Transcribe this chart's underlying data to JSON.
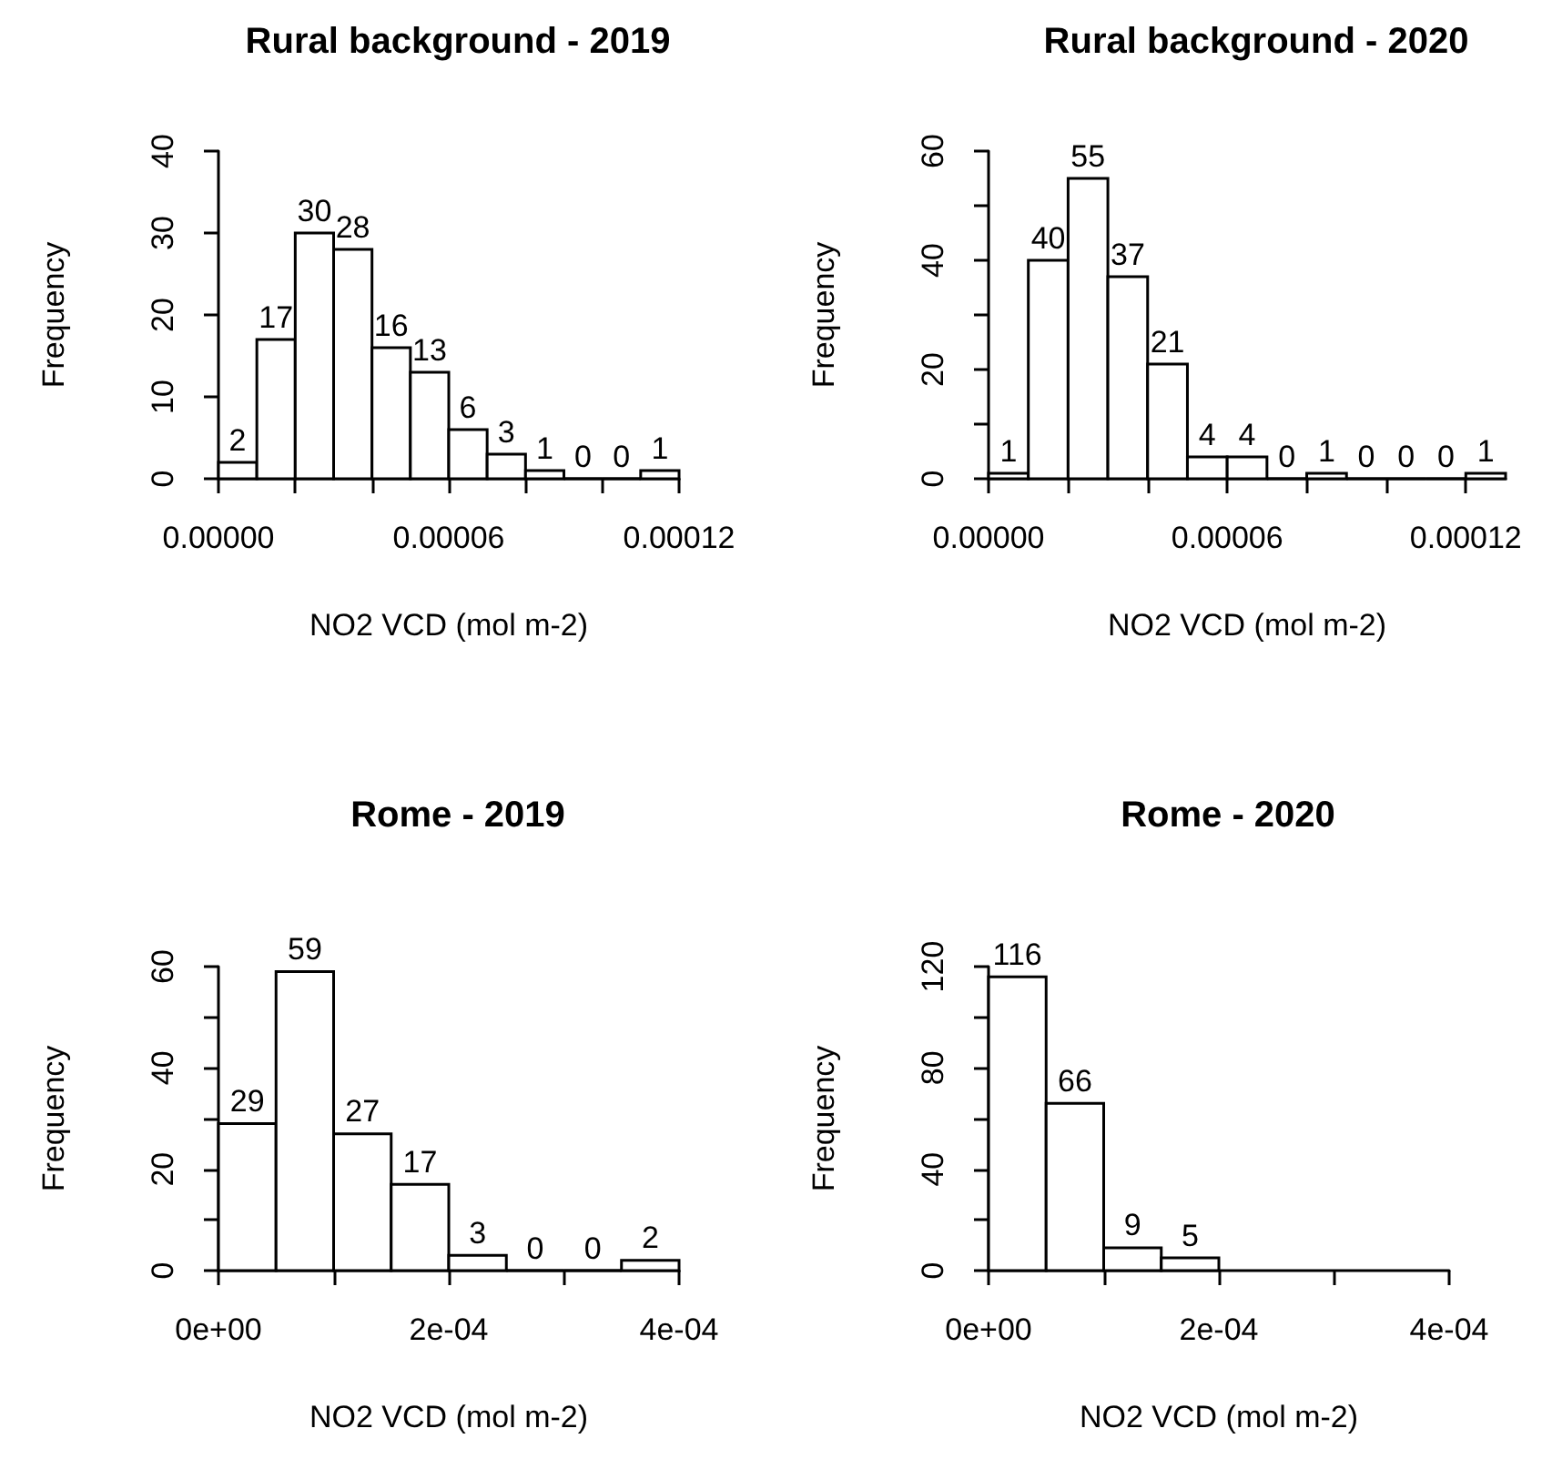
{
  "chart_data": [
    {
      "type": "histogram",
      "title": "Rural background - 2019",
      "xlabel": "NO2 VCD (mol m-2)",
      "ylabel": "Frequency",
      "color": "#ffffff",
      "data_labels": true,
      "grid": false,
      "bins": [
        0,
        1e-05,
        2e-05,
        3e-05,
        4e-05,
        5e-05,
        6e-05,
        7e-05,
        8e-05,
        9e-05,
        0.0001,
        0.00011,
        0.00012
      ],
      "values": [
        2,
        17,
        30,
        28,
        16,
        13,
        6,
        3,
        1,
        0,
        0,
        1
      ],
      "xlim": [
        0,
        0.00012
      ],
      "xticks": [
        {
          "value": 0,
          "label": "0.00000"
        },
        {
          "value": 2e-05,
          "label": null
        },
        {
          "value": 4e-05,
          "label": null
        },
        {
          "value": 6e-05,
          "label": "0.00006"
        },
        {
          "value": 8e-05,
          "label": null
        },
        {
          "value": 0.0001,
          "label": null
        },
        {
          "value": 0.00012,
          "label": "0.00012"
        }
      ],
      "ylim": [
        0,
        40
      ],
      "yticks": [
        0,
        10,
        20,
        30,
        40
      ]
    },
    {
      "type": "histogram",
      "title": "Rural background - 2020",
      "xlabel": "NO2 VCD (mol m-2)",
      "ylabel": "Frequency",
      "color": "#ffffff",
      "data_labels": true,
      "grid": false,
      "bins": [
        0,
        1e-05,
        2e-05,
        3e-05,
        4e-05,
        5e-05,
        6e-05,
        7e-05,
        8e-05,
        9e-05,
        0.0001,
        0.00011,
        0.00012,
        0.00013
      ],
      "values": [
        1,
        40,
        55,
        37,
        21,
        4,
        4,
        0,
        1,
        0,
        0,
        0,
        1
      ],
      "xlim": [
        0,
        0.00013
      ],
      "xticks": [
        {
          "value": 0,
          "label": "0.00000"
        },
        {
          "value": 2e-05,
          "label": null
        },
        {
          "value": 4e-05,
          "label": null
        },
        {
          "value": 6e-05,
          "label": "0.00006"
        },
        {
          "value": 8e-05,
          "label": null
        },
        {
          "value": 0.0001,
          "label": null
        },
        {
          "value": 0.00012,
          "label": "0.00012"
        }
      ],
      "ylim": [
        0,
        60
      ],
      "yticks": [
        0,
        {
          "value": 10,
          "label": null
        },
        20,
        {
          "value": 30,
          "label": null
        },
        40,
        {
          "value": 50,
          "label": null
        },
        60
      ]
    },
    {
      "type": "histogram",
      "title": "Rome - 2019",
      "xlabel": "NO2 VCD (mol m-2)",
      "ylabel": "Frequency",
      "color": "#ffffff",
      "data_labels": true,
      "grid": false,
      "bins": [
        0,
        5e-05,
        0.0001,
        0.00015,
        0.0002,
        0.00025,
        0.0003,
        0.00035,
        0.0004
      ],
      "values": [
        29,
        59,
        27,
        17,
        3,
        0,
        0,
        2
      ],
      "xlim": [
        0,
        0.0004
      ],
      "xticks": [
        {
          "value": 0,
          "label": "0e+00"
        },
        {
          "value": 0.0001,
          "label": null
        },
        {
          "value": 0.0002,
          "label": "2e-04"
        },
        {
          "value": 0.0003,
          "label": null
        },
        {
          "value": 0.0004,
          "label": "4e-04"
        }
      ],
      "ylim": [
        0,
        60
      ],
      "yticks": [
        0,
        {
          "value": 10,
          "label": null
        },
        20,
        {
          "value": 30,
          "label": null
        },
        40,
        {
          "value": 50,
          "label": null
        },
        60
      ]
    },
    {
      "type": "histogram",
      "title": "Rome - 2020",
      "xlabel": "NO2 VCD (mol m-2)",
      "ylabel": "Frequency",
      "color": "#ffffff",
      "data_labels": true,
      "grid": false,
      "bins": [
        0,
        5e-05,
        0.0001,
        0.00015,
        0.0002
      ],
      "values": [
        116,
        66,
        9,
        5
      ],
      "xlim": [
        0,
        0.0004
      ],
      "xticks": [
        {
          "value": 0,
          "label": "0e+00"
        },
        {
          "value": 0.0001,
          "label": null
        },
        {
          "value": 0.0002,
          "label": "2e-04"
        },
        {
          "value": 0.0003,
          "label": null
        },
        {
          "value": 0.0004,
          "label": "4e-04"
        }
      ],
      "ylim": [
        0,
        120
      ],
      "yticks": [
        0,
        {
          "value": 20,
          "label": null
        },
        40,
        {
          "value": 60,
          "label": null
        },
        80,
        {
          "value": 100,
          "label": null
        },
        120
      ]
    }
  ]
}
